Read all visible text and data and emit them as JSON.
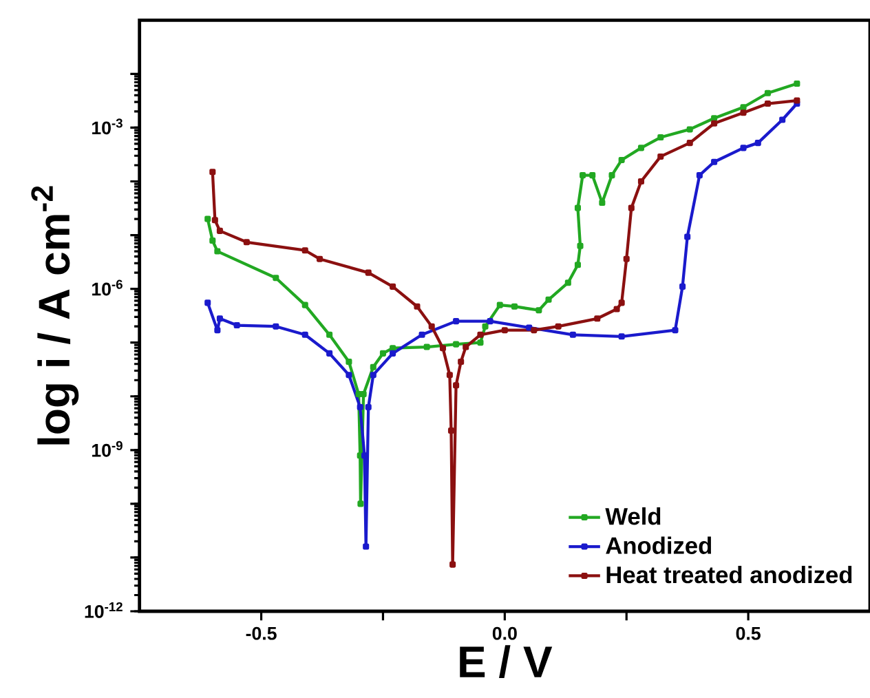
{
  "chart_data": {
    "type": "line",
    "xlabel": "E / V",
    "ylabel": "log i / A cm$^{-2}$",
    "log": "y",
    "marker": "square",
    "legend": "bottom right",
    "xlim": [
      -0.75,
      0.75
    ],
    "xticks": [
      {
        "value": -0.5,
        "label": "-0.5"
      },
      {
        "value": -0.25,
        "label": null
      },
      {
        "value": 0,
        "label": "0.0"
      },
      {
        "value": 0.25,
        "label": null
      },
      {
        "value": 0.5,
        "label": "0.5"
      }
    ],
    "ylim": [
      1e-12,
      0.1
    ],
    "yticks": [
      {
        "value": 1e-12,
        "label": "10$^{-12}$"
      },
      {
        "value": 1e-11,
        "label": null
      },
      {
        "value": 1e-10,
        "label": null
      },
      {
        "value": 1e-09,
        "label": "10$^{-9}$"
      },
      {
        "value": 1e-08,
        "label": null
      },
      {
        "value": 1e-07,
        "label": null
      },
      {
        "value": 1e-06,
        "label": "10$^{-6}$"
      },
      {
        "value": 1e-05,
        "label": null
      },
      {
        "value": 0.0001,
        "label": null
      },
      {
        "value": 0.001,
        "label": "10$^{-3}$"
      },
      {
        "value": 0.01,
        "label": null
      }
    ],
    "series": [
      {
        "name": "Weld",
        "color": "#22a822",
        "x": [
          -0.61,
          -0.6,
          -0.59,
          -0.47,
          -0.41,
          -0.36,
          -0.32,
          -0.3,
          -0.297,
          -0.296,
          -0.29,
          -0.27,
          -0.25,
          -0.23,
          -0.16,
          -0.1,
          -0.05,
          -0.04,
          -0.01,
          0.02,
          0.07,
          0.09,
          0.13,
          0.15,
          0.155,
          0.15,
          0.16,
          0.18,
          0.2,
          0.22,
          0.24,
          0.28,
          0.32,
          0.38,
          0.43,
          0.49,
          0.54,
          0.6
        ],
        "values": [
          2e-05,
          7.9e-06,
          5e-06,
          1.6e-06,
          5e-07,
          1.4e-07,
          4.4e-08,
          1.1e-08,
          7.9e-10,
          1e-10,
          1.1e-08,
          3.5e-08,
          6.3e-08,
          7.9e-08,
          8.3e-08,
          9.3e-08,
          1e-07,
          2e-07,
          5e-07,
          4.7e-07,
          4e-07,
          6.3e-07,
          1.3e-06,
          2.8e-06,
          6.3e-06,
          3.2e-05,
          0.00013,
          0.00013,
          4e-05,
          0.00013,
          0.00025,
          0.00042,
          0.00066,
          0.00093,
          0.0015,
          0.0024,
          0.0044,
          0.0066
        ]
      },
      {
        "name": "Anodized",
        "color": "#1a1acc",
        "x": [
          -0.61,
          -0.59,
          -0.585,
          -0.55,
          -0.47,
          -0.41,
          -0.36,
          -0.32,
          -0.297,
          -0.288,
          -0.285,
          -0.28,
          -0.27,
          -0.23,
          -0.17,
          -0.1,
          -0.03,
          0.05,
          0.14,
          0.24,
          0.35,
          0.365,
          0.375,
          0.4,
          0.43,
          0.49,
          0.52,
          0.57,
          0.6
        ],
        "values": [
          5.5e-07,
          1.7e-07,
          2.8e-07,
          2.1e-07,
          2e-07,
          1.4e-07,
          6.3e-08,
          2.5e-08,
          6.3e-09,
          7.9e-10,
          1.6e-11,
          6.3e-09,
          2.5e-08,
          6.3e-08,
          1.4e-07,
          2.5e-07,
          2.5e-07,
          1.9e-07,
          1.4e-07,
          1.3e-07,
          1.7e-07,
          1.1e-06,
          9.3e-06,
          0.00013,
          0.00023,
          0.00042,
          0.00052,
          0.0014,
          0.0028
        ]
      },
      {
        "name": "Heat treated anodized",
        "color": "#8b1010",
        "x": [
          -0.6,
          -0.595,
          -0.585,
          -0.53,
          -0.41,
          -0.38,
          -0.28,
          -0.23,
          -0.18,
          -0.15,
          -0.127,
          -0.113,
          -0.11,
          -0.107,
          -0.1,
          -0.09,
          -0.08,
          -0.05,
          0.0,
          0.06,
          0.11,
          0.19,
          0.23,
          0.24,
          0.25,
          0.26,
          0.28,
          0.32,
          0.38,
          0.43,
          0.49,
          0.54,
          0.6
        ],
        "values": [
          0.00015,
          1.9e-05,
          1.2e-05,
          7.4e-06,
          5.2e-06,
          3.6e-06,
          2e-06,
          1.1e-06,
          4.7e-07,
          2e-07,
          7.9e-08,
          2.5e-08,
          2.3e-09,
          7.4e-12,
          1.6e-08,
          4.4e-08,
          8.3e-08,
          1.4e-07,
          1.7e-07,
          1.7e-07,
          2e-07,
          2.8e-07,
          4.2e-07,
          5.5e-07,
          3.6e-06,
          3.2e-05,
          0.0001,
          0.00029,
          0.00052,
          0.0012,
          0.0019,
          0.0028,
          0.0032
        ]
      }
    ]
  }
}
